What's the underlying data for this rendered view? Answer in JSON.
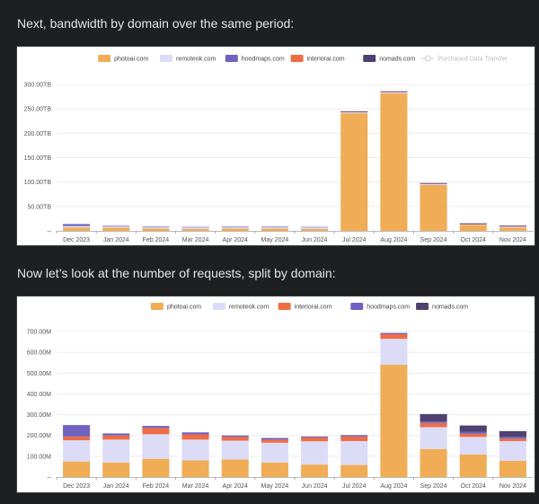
{
  "headings": {
    "bandwidth": "Next, bandwidth by domain over the same period:",
    "requests": "Now let’s look at the number of requests, split by domain:"
  },
  "colors": {
    "photoai.com": "#f0ad55",
    "remoteok.com": "#dcdcf7",
    "hoodmaps.com": "#6f63bf",
    "interiorai.com": "#ef6d45",
    "nomads.com": "#4f4170",
    "Purchased Data Transfer": "#cccccc"
  },
  "chart_data": [
    {
      "type": "bar",
      "stacked": true,
      "title": "Bandwidth by domain",
      "xlabel": "",
      "ylabel": "",
      "unit": "TB",
      "ylim": [
        0,
        300
      ],
      "yticks": [
        0,
        50,
        100,
        150,
        200,
        250,
        300
      ],
      "ytick_labels": [
        "--",
        "50.00TB",
        "100.00TB",
        "150.00TB",
        "200.00TB",
        "250.00TB",
        "300.00TB"
      ],
      "grid": true,
      "legend_position": "top-center",
      "legend": [
        "photoai.com",
        "remoteok.com",
        "hoodmaps.com",
        "interiorai.com",
        "nomads.com",
        "Purchased Data Transfer"
      ],
      "categories": [
        "Dec 2023",
        "Jan 2024",
        "Feb 2024",
        "Mar 2024",
        "Apr 2024",
        "May 2024",
        "Jun 2024",
        "Jul 2024",
        "Aug 2024",
        "Sep 2024",
        "Oct 2024",
        "Nov 2024"
      ],
      "series": [
        {
          "name": "photoai.com",
          "values": [
            7,
            7,
            5,
            4,
            5,
            5,
            4,
            241,
            282,
            94,
            12,
            7
          ]
        },
        {
          "name": "remoteok.com",
          "values": [
            3,
            3,
            3,
            3,
            3,
            3,
            3,
            2,
            2,
            2,
            1,
            2
          ]
        },
        {
          "name": "hoodmaps.com",
          "values": [
            4,
            1,
            1,
            1,
            1,
            1,
            1,
            1,
            1,
            1,
            1,
            1
          ]
        },
        {
          "name": "interiorai.com",
          "values": [
            0,
            0,
            0,
            0,
            0,
            0,
            0,
            0.5,
            0.5,
            0.5,
            0.5,
            0.5
          ]
        },
        {
          "name": "nomads.com",
          "values": [
            0,
            0,
            0,
            0,
            0,
            0,
            0,
            0.5,
            0.5,
            0.5,
            1,
            0.5
          ]
        }
      ]
    },
    {
      "type": "bar",
      "stacked": true,
      "title": "Requests by domain",
      "xlabel": "",
      "ylabel": "",
      "unit": "M",
      "ylim": [
        0,
        700
      ],
      "yticks": [
        0,
        100,
        200,
        300,
        400,
        500,
        600,
        700
      ],
      "ytick_labels": [
        "--",
        "100.00M",
        "200.00M",
        "300.00M",
        "400.00M",
        "500.00M",
        "600.00M",
        "700.00M"
      ],
      "grid": true,
      "legend_position": "top-center",
      "legend": [
        "photoai.com",
        "remoteok.com",
        "interiorai.com",
        "hoodmaps.com",
        "nomads.com"
      ],
      "categories": [
        "Dec 2023",
        "Jan 2024",
        "Feb 2024",
        "Mar 2024",
        "Apr 2024",
        "May 2024",
        "Jun 2024",
        "Jul 2024",
        "Aug 2024",
        "Sep 2024",
        "Oct 2024",
        "Nov 2024"
      ],
      "series": [
        {
          "name": "photoai.com",
          "values": [
            75,
            70,
            88,
            80,
            85,
            70,
            60,
            58,
            540,
            135,
            108,
            78
          ]
        },
        {
          "name": "remoteok.com",
          "values": [
            102,
            110,
            118,
            100,
            90,
            95,
            112,
            115,
            125,
            105,
            85,
            95
          ]
        },
        {
          "name": "interiorai.com",
          "values": [
            18,
            20,
            30,
            25,
            18,
            15,
            18,
            22,
            22,
            20,
            15,
            12
          ]
        },
        {
          "name": "hoodmaps.com",
          "values": [
            55,
            10,
            10,
            10,
            7,
            8,
            5,
            7,
            6,
            8,
            10,
            8
          ]
        },
        {
          "name": "nomads.com",
          "values": [
            0,
            0,
            0,
            0,
            0,
            0,
            0,
            0,
            0,
            35,
            30,
            28
          ]
        }
      ]
    }
  ]
}
